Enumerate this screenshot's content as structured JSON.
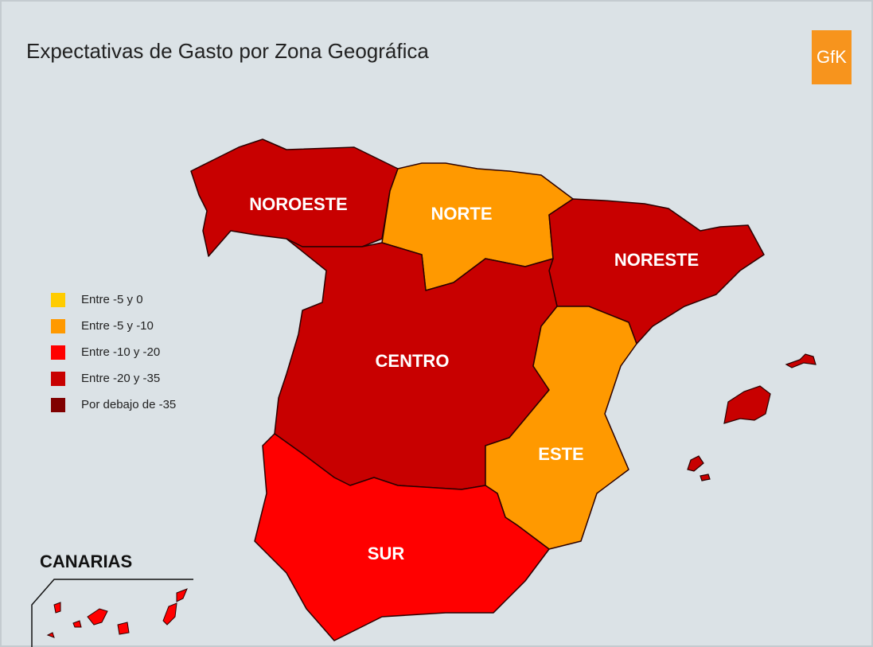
{
  "header": {
    "title": "Expectativas de Gasto por Zona Geográfica",
    "logo": "GfK"
  },
  "legend": [
    {
      "label": "Entre -5 y 0",
      "color": "#ffcc00"
    },
    {
      "label": "Entre -5 y -10",
      "color": "#ff9900"
    },
    {
      "label": "Entre -10 y -20",
      "color": "#ff0000"
    },
    {
      "label": "Entre -20 y -35",
      "color": "#c80000"
    },
    {
      "label": "Por debajo de -35",
      "color": "#800000"
    }
  ],
  "regions": [
    {
      "label": "NOROESTE",
      "color": "#c80000"
    },
    {
      "label": "NORTE",
      "color": "#ff9900"
    },
    {
      "label": "NORESTE",
      "color": "#c80000"
    },
    {
      "label": "CENTRO",
      "color": "#c80000"
    },
    {
      "label": "ESTE",
      "color": "#ff9900"
    },
    {
      "label": "SUR",
      "color": "#ff0000"
    }
  ],
  "inset": {
    "label": "CANARIAS"
  }
}
